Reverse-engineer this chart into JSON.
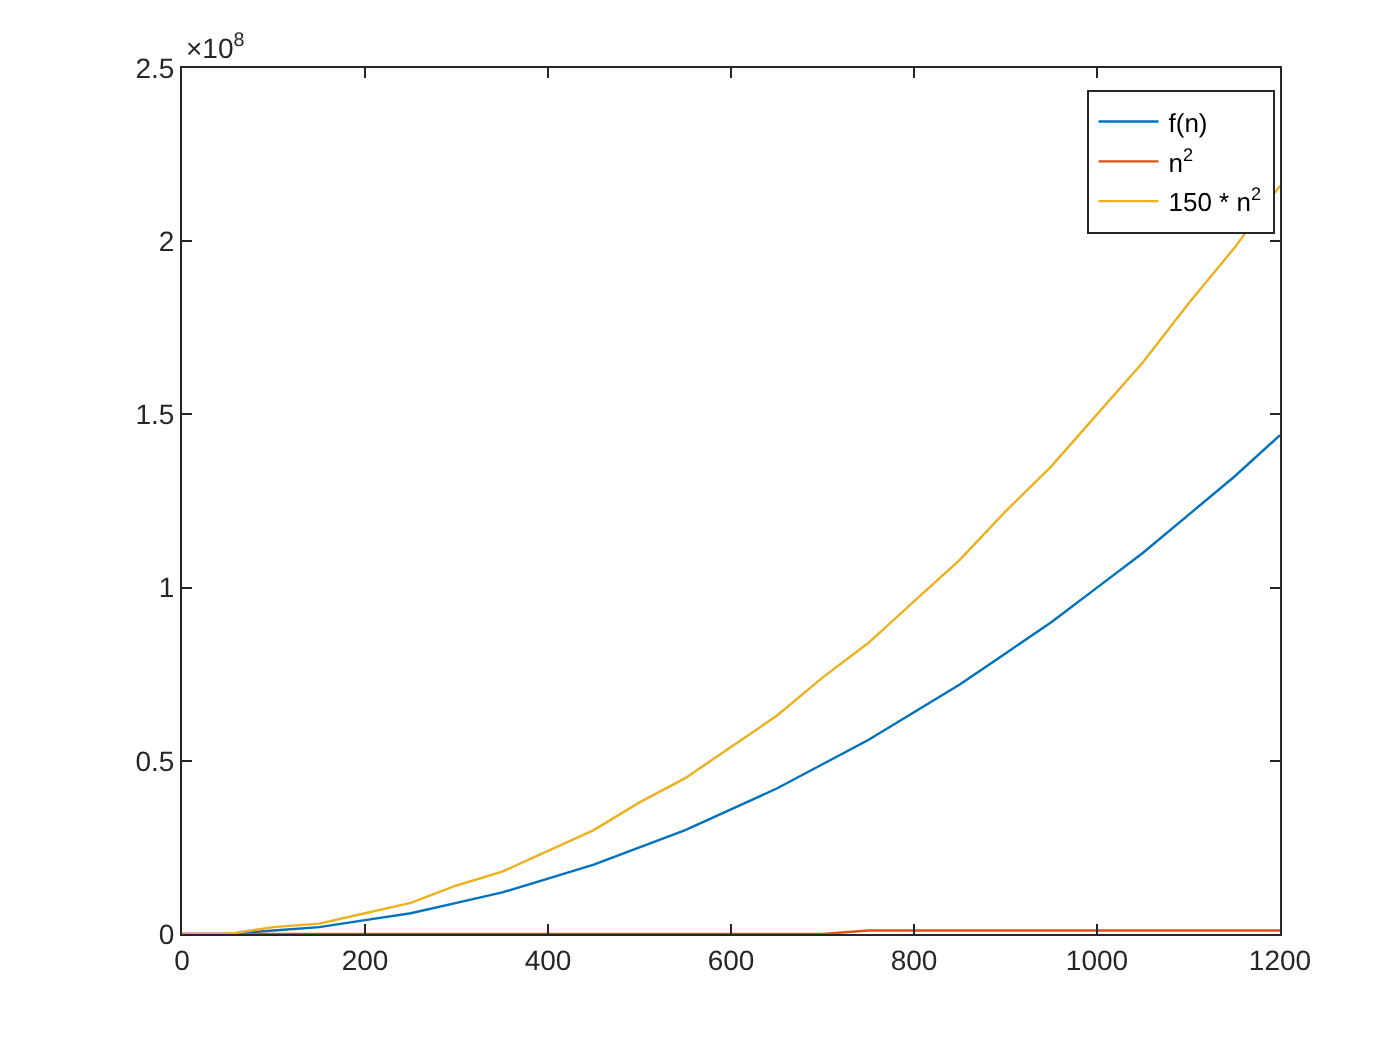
{
  "chart_data": {
    "type": "line",
    "annotations": [
      "×10$^{8}$"
    ],
    "x": [
      0,
      50,
      100,
      150,
      200,
      250,
      300,
      350,
      400,
      450,
      500,
      550,
      600,
      650,
      700,
      750,
      800,
      850,
      900,
      950,
      1000,
      1050,
      1100,
      1150,
      1200
    ],
    "series": [
      {
        "name": "f(n)",
        "color": "#0072bd",
        "values": [
          0,
          0,
          0.01,
          0.02,
          0.04,
          0.06,
          0.09,
          0.12,
          0.16,
          0.2,
          0.25,
          0.3,
          0.36,
          0.42,
          0.49,
          0.56,
          0.64,
          0.72,
          0.81,
          0.9,
          1.0,
          1.1,
          1.21,
          1.32,
          1.44
        ]
      },
      {
        "name": "n$^{2}$",
        "color": "#d95319",
        "values": [
          0,
          0,
          0,
          0,
          0,
          0,
          0,
          0,
          0,
          0,
          0,
          0,
          0,
          0,
          0,
          0.01,
          0.01,
          0.01,
          0.01,
          0.01,
          0.01,
          0.01,
          0.01,
          0.01,
          0.01
        ]
      },
      {
        "name": "150 * n$^{2}$",
        "color": "#edb120",
        "values": [
          0,
          0,
          0.02,
          0.03,
          0.06,
          0.09,
          0.14,
          0.18,
          0.24,
          0.3,
          0.38,
          0.45,
          0.54,
          0.63,
          0.74,
          0.84,
          0.96,
          1.08,
          1.22,
          1.35,
          1.5,
          1.65,
          1.82,
          1.98,
          2.16
        ]
      }
    ],
    "xlim": [
      0,
      1200
    ],
    "xticks": [
      0,
      200,
      400,
      600,
      800,
      1000,
      1200
    ],
    "ylim": [
      0,
      2.5
    ],
    "yticks": [
      0,
      0.5,
      1,
      1.5,
      2,
      2.5
    ],
    "legend": "top right",
    "line_style": "solid",
    "marker": "none"
  }
}
